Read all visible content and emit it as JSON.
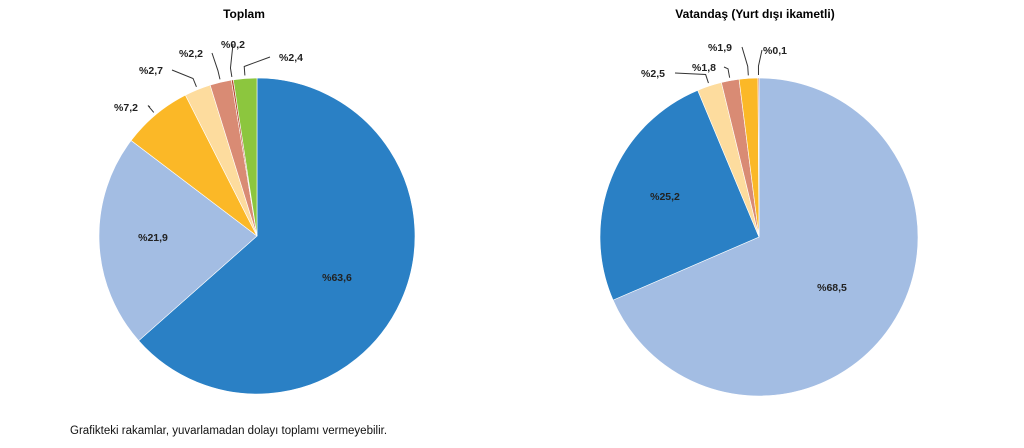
{
  "chart_data": [
    {
      "type": "pie",
      "title": "Toplam",
      "start": "top",
      "direction": "clockwise",
      "slices": [
        {
          "label": "%63,6",
          "value": 63.6,
          "color": "#2a80c5"
        },
        {
          "label": "%21,9",
          "value": 21.9,
          "color": "#a3bde3"
        },
        {
          "label": "%7,2",
          "value": 7.2,
          "color": "#fbb827"
        },
        {
          "label": "%2,7",
          "value": 2.7,
          "color": "#fddc9e"
        },
        {
          "label": "%2,2",
          "value": 2.2,
          "color": "#d98b74"
        },
        {
          "label": "%0,2",
          "value": 0.2,
          "color": "#b5462e"
        },
        {
          "label": "%2,4",
          "value": 2.4,
          "color": "#8cc63e"
        }
      ]
    },
    {
      "type": "pie",
      "title": "Vatandaş (Yurt dışı ikametli)",
      "start": "top",
      "direction": "clockwise",
      "slices": [
        {
          "label": "%68,5",
          "value": 68.5,
          "color": "#a3bde3"
        },
        {
          "label": "%25,2",
          "value": 25.2,
          "color": "#2a80c5"
        },
        {
          "label": "%2,5",
          "value": 2.5,
          "color": "#fddc9e"
        },
        {
          "label": "%1,8",
          "value": 1.8,
          "color": "#d98b74"
        },
        {
          "label": "%1,9",
          "value": 1.9,
          "color": "#fbb827"
        },
        {
          "label": "%0,1",
          "value": 0.1,
          "color": "#b5462e"
        }
      ]
    }
  ],
  "note": "Grafikteki rakamlar, yuvarlamadan dolayı toplamı vermeyebilir."
}
